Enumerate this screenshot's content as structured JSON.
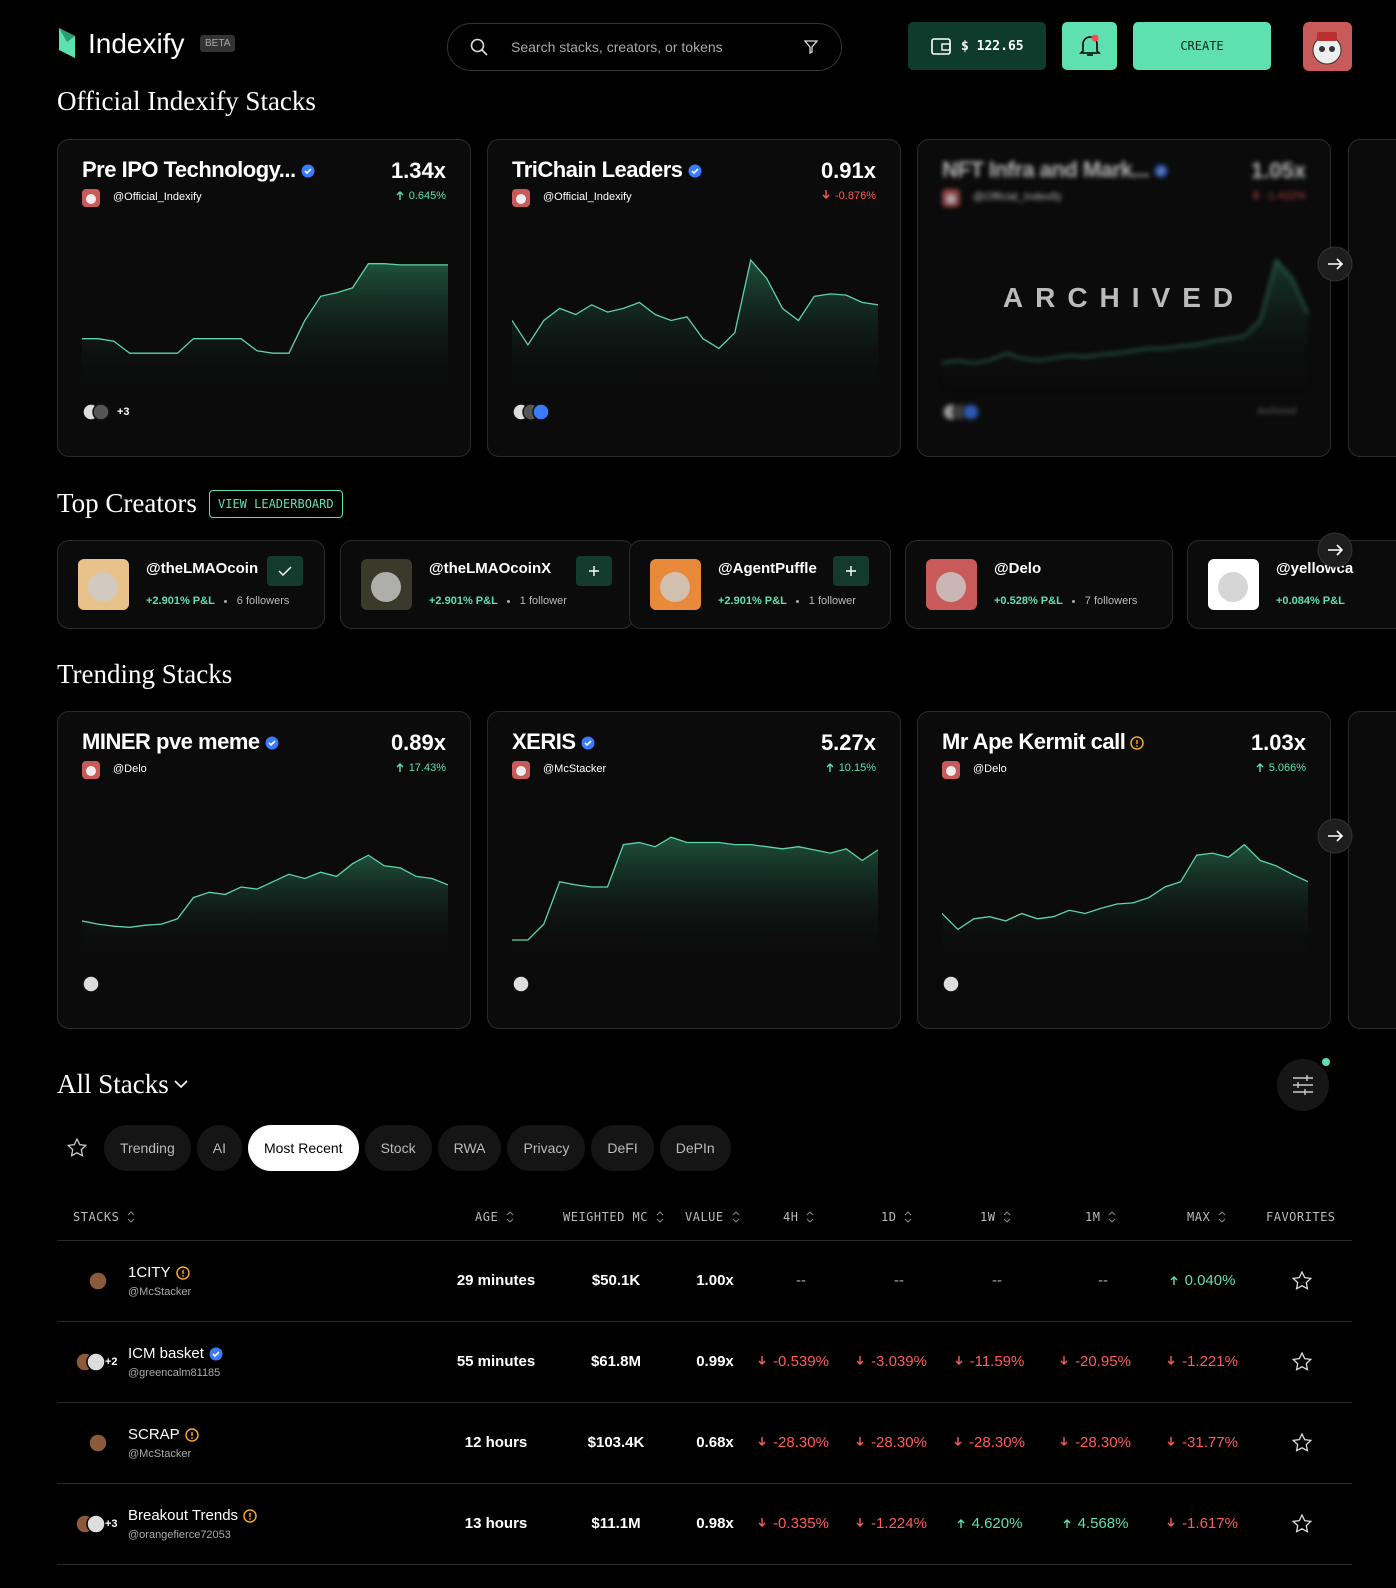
{
  "header": {
    "logo": "Indexify",
    "badge": "BETA",
    "search_placeholder": "Search stacks, creators, or tokens",
    "balance": "$ 122.65",
    "create": "CREATE"
  },
  "official": {
    "title": "Official Indexify Stacks",
    "archived_label": "ARCHIVED",
    "cards": [
      {
        "name": "Pre IPO Technology...",
        "badge": "verified",
        "creator": "@Official_Indexify",
        "multiple": "1.34x",
        "change": "0.645%",
        "dir": "up",
        "extra": "+3",
        "spark": [
          30,
          30,
          28,
          18,
          18,
          18,
          18,
          30,
          30,
          30,
          30,
          20,
          18,
          18,
          45,
          65,
          68,
          72,
          92,
          92,
          91,
          91,
          91,
          91
        ]
      },
      {
        "name": "TriChain Leaders",
        "badge": "verified",
        "creator": "@Official_Indexify",
        "multiple": "0.91x",
        "change": "-0.876%",
        "dir": "down",
        "spark": [
          45,
          25,
          45,
          55,
          50,
          58,
          52,
          55,
          60,
          50,
          45,
          48,
          30,
          22,
          35,
          95,
          80,
          55,
          45,
          65,
          67,
          66,
          60,
          58
        ]
      },
      {
        "name": "NFT Infra and Mark...",
        "badge": "verified",
        "creator": "@Official_Indexify",
        "multiple": "1.05x",
        "change": "-1.422%",
        "dir": "down",
        "archived": true,
        "status": "Archived",
        "spark": [
          10,
          12,
          10,
          12,
          18,
          14,
          12,
          14,
          16,
          15,
          17,
          18,
          20,
          22,
          22,
          24,
          25,
          28,
          30,
          32,
          45,
          95,
          80,
          50
        ]
      }
    ]
  },
  "creators": {
    "title": "Top Creators",
    "leaderboard": "VIEW LEADERBOARD",
    "items": [
      {
        "handle": "@theLMAOcoin",
        "pnl": "+2.901% P&L",
        "followers": "6 followers",
        "following": true
      },
      {
        "handle": "@theLMAOcoinX",
        "pnl": "+2.901% P&L",
        "followers": "1 follower",
        "following": false
      },
      {
        "handle": "@AgentPuffle",
        "pnl": "+2.901% P&L",
        "followers": "1 follower",
        "following": false
      },
      {
        "handle": "@Delo",
        "pnl": "+0.528% P&L",
        "followers": "7 followers"
      },
      {
        "handle": "@yellowca",
        "pnl": "+0.084% P&L"
      }
    ]
  },
  "trending": {
    "title": "Trending Stacks",
    "cards": [
      {
        "name": "MINER pve meme",
        "badge": "verified",
        "creator": "@Delo",
        "multiple": "0.89x",
        "change": "17.43%",
        "dir": "up",
        "spark": [
          18,
          15,
          13,
          12,
          14,
          15,
          20,
          40,
          45,
          43,
          50,
          48,
          55,
          62,
          58,
          64,
          60,
          72,
          80,
          70,
          68,
          60,
          58,
          52
        ]
      },
      {
        "name": "XERIS",
        "badge": "verified",
        "creator": "@McStacker",
        "multiple": "5.27x",
        "change": "10.15%",
        "dir": "up",
        "spark": [
          0,
          0,
          15,
          55,
          52,
          50,
          50,
          90,
          92,
          88,
          97,
          92,
          92,
          92,
          90,
          90,
          88,
          86,
          88,
          85,
          82,
          86,
          75,
          85
        ]
      },
      {
        "name": "Mr Ape Kermit call",
        "badge": "warning",
        "creator": "@Delo",
        "multiple": "1.03x",
        "change": "5.066%",
        "dir": "up",
        "spark": [
          25,
          10,
          20,
          22,
          18,
          25,
          20,
          22,
          28,
          25,
          30,
          34,
          35,
          40,
          50,
          55,
          80,
          82,
          78,
          90,
          75,
          70,
          62,
          55
        ]
      }
    ]
  },
  "all": {
    "title": "All Stacks",
    "tabs": [
      "Trending",
      "AI",
      "Most Recent",
      "Stock",
      "RWA",
      "Privacy",
      "DeFI",
      "DePIn"
    ],
    "active_tab": 2,
    "columns": [
      "STACKS",
      "AGE",
      "WEIGHTED MC",
      "VALUE",
      "4H",
      "1D",
      "1W",
      "1M",
      "MAX",
      "FAVORITES"
    ],
    "rows": [
      {
        "name": "1CITY",
        "badge": "warning",
        "creator": "@McStacker",
        "age": "29 minutes",
        "mc": "$50.1K",
        "value": "1.00x",
        "changes": [
          "--",
          "--",
          "--",
          "--",
          "0.040%"
        ],
        "dirs": [
          null,
          null,
          null,
          null,
          "up"
        ]
      },
      {
        "name": "ICM basket",
        "badge": "verified",
        "creator": "@greencalm81185",
        "extra": "+2",
        "age": "55 minutes",
        "mc": "$61.8M",
        "value": "0.99x",
        "changes": [
          "-0.539%",
          "-3.039%",
          "-11.59%",
          "-20.95%",
          "-1.221%"
        ],
        "dirs": [
          "down",
          "down",
          "down",
          "down",
          "down"
        ]
      },
      {
        "name": "SCRAP",
        "badge": "warning",
        "creator": "@McStacker",
        "age": "12 hours",
        "mc": "$103.4K",
        "value": "0.68x",
        "changes": [
          "-28.30%",
          "-28.30%",
          "-28.30%",
          "-28.30%",
          "-31.77%"
        ],
        "dirs": [
          "down",
          "down",
          "down",
          "down",
          "down"
        ]
      },
      {
        "name": "Breakout Trends",
        "badge": "warning",
        "creator": "@orangefierce72053",
        "extra": "+3",
        "age": "13 hours",
        "mc": "$11.1M",
        "value": "0.98x",
        "changes": [
          "-0.335%",
          "-1.224%",
          "4.620%",
          "4.568%",
          "-1.617%"
        ],
        "dirs": [
          "down",
          "down",
          "up",
          "up",
          "down"
        ]
      }
    ]
  }
}
